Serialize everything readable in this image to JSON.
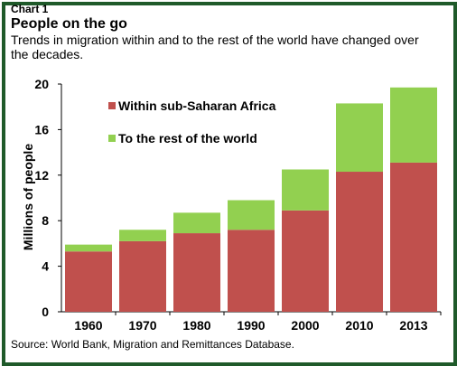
{
  "header": {
    "chart_label": "Chart 1",
    "title": "People on the go",
    "subtitle": "Trends in migration within and to the rest of the world have changed over the decades."
  },
  "source": "Source: World Bank, Migration and Remittances Database.",
  "colors": {
    "frame": "#1f5a2a",
    "within": "#c0504d",
    "rest": "#92d050"
  },
  "chart_data": {
    "type": "bar",
    "stacked": true,
    "categories": [
      "1960",
      "1970",
      "1980",
      "1990",
      "2000",
      "2010",
      "2013"
    ],
    "series": [
      {
        "name": "Within sub-Saharan Africa",
        "values": [
          5.3,
          6.2,
          6.9,
          7.2,
          8.9,
          12.3,
          13.1
        ]
      },
      {
        "name": "To the rest of the world",
        "values": [
          0.6,
          1.0,
          1.8,
          2.6,
          3.6,
          6.0,
          6.6
        ]
      }
    ],
    "ylabel": "Millions of people",
    "ylim": [
      0,
      20
    ],
    "yticks": [
      0,
      4,
      8,
      12,
      16,
      20
    ],
    "legend_position": "top-left",
    "grid": false
  }
}
